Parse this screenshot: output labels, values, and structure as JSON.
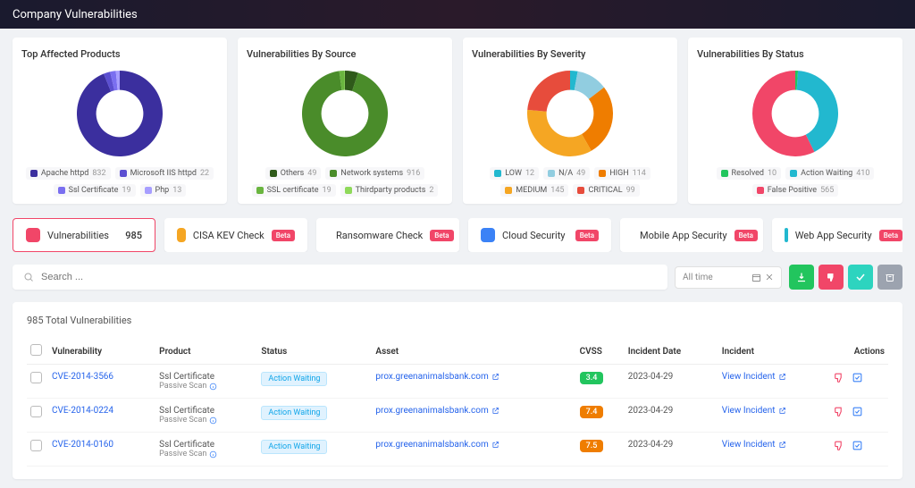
{
  "page_title": "Company Vulnerabilities",
  "colors": {
    "accent_red": "#f14668",
    "green_btn": "#22c55e",
    "red_btn": "#f14668",
    "teal_btn": "#14b8a6",
    "gray_btn": "#9ca3af"
  },
  "charts": [
    {
      "title": "Top Affected Products",
      "type": "donut",
      "inner_radius": 0.55,
      "outer_radius": 48,
      "background": "#ffffff",
      "segments": [
        {
          "label": "Apache httpd",
          "value": 832,
          "color": "#3b2f9e"
        },
        {
          "label": "Microsoft IIS httpd",
          "value": 22,
          "color": "#5b4fd1"
        },
        {
          "label": "Ssl Certificate",
          "value": 19,
          "color": "#7a6ff0"
        },
        {
          "label": "Php",
          "value": 13,
          "color": "#a79eff"
        }
      ]
    },
    {
      "title": "Vulnerabilities By Source",
      "type": "donut",
      "inner_radius": 0.55,
      "outer_radius": 48,
      "background": "#ffffff",
      "segments": [
        {
          "label": "Others",
          "value": 49,
          "color": "#2f5a1a"
        },
        {
          "label": "Network systems",
          "value": 916,
          "color": "#4a8c2a"
        },
        {
          "label": "SSL certificate",
          "value": 19,
          "color": "#6ab53f"
        },
        {
          "label": "Thirdparty products",
          "value": 2,
          "color": "#8fd95a"
        }
      ]
    },
    {
      "title": "Vulnerabilities By Severity",
      "type": "donut",
      "inner_radius": 0.55,
      "outer_radius": 48,
      "background": "#ffffff",
      "segments": [
        {
          "label": "LOW",
          "value": 12,
          "color": "#22b8cf"
        },
        {
          "label": "N/A",
          "value": 49,
          "color": "#91cde0"
        },
        {
          "label": "HIGH",
          "value": 114,
          "color": "#ef7d00"
        },
        {
          "label": "MEDIUM",
          "value": 145,
          "color": "#f5a623"
        },
        {
          "label": "CRITICAL",
          "value": 99,
          "color": "#e74c3c"
        }
      ]
    },
    {
      "title": "Vulnerabilities By Status",
      "type": "donut",
      "inner_radius": 0.55,
      "outer_radius": 48,
      "background": "#ffffff",
      "segments": [
        {
          "label": "Resolved",
          "value": 10,
          "color": "#22c55e"
        },
        {
          "label": "Action Waiting",
          "value": 410,
          "color": "#22b8cf"
        },
        {
          "label": "False Positive",
          "value": 565,
          "color": "#f14668"
        }
      ],
      "legend_truncated_last": "False Positive"
    }
  ],
  "tabs": [
    {
      "label": "Vulnerabilities",
      "count": 985,
      "color": "#f14668",
      "beta": false,
      "active": true
    },
    {
      "label": "CISA KEV Check",
      "color": "#f5a623",
      "beta": true,
      "active": false
    },
    {
      "label": "Ransomware Check",
      "color": "#22c55e",
      "beta": true,
      "active": false
    },
    {
      "label": "Cloud Security",
      "color": "#3b82f6",
      "beta": true,
      "active": false
    },
    {
      "label": "Mobile App Security",
      "color": "#6b7280",
      "beta": true,
      "active": false
    },
    {
      "label": "Web App Security",
      "color": "#22b8cf",
      "beta": true,
      "active": false
    }
  ],
  "beta_text": "Beta",
  "search": {
    "placeholder": "Search ..."
  },
  "date_filter": {
    "label": "All time"
  },
  "action_buttons": [
    {
      "name": "download",
      "color": "#22c55e",
      "icon": "download"
    },
    {
      "name": "thumbs-down",
      "color": "#f14668",
      "icon": "thumbs-down"
    },
    {
      "name": "check",
      "color": "#2dd4bf",
      "icon": "check"
    },
    {
      "name": "archive",
      "color": "#9ca3af",
      "icon": "archive"
    }
  ],
  "table": {
    "total_text": "985 Total Vulnerabilities",
    "columns": [
      "",
      "Vulnerability",
      "Product",
      "Status",
      "Asset",
      "CVSS",
      "Incident Date",
      "Incident",
      "Actions"
    ],
    "status_label": "Action Waiting",
    "product_sub_label": "Passive Scan",
    "incident_link_label": "View Incident",
    "rows": [
      {
        "cve": "CVE-2014-3566",
        "product": "Ssl Certificate",
        "asset": "prox.greenanimalsbank.com",
        "cvss": "3.4",
        "cvss_color": "#22c55e",
        "date": "2023-04-29"
      },
      {
        "cve": "CVE-2014-0224",
        "product": "Ssl Certificate",
        "asset": "prox.greenanimalsbank.com",
        "cvss": "7.4",
        "cvss_color": "#ef7d00",
        "date": "2023-04-29"
      },
      {
        "cve": "CVE-2014-0160",
        "product": "Ssl Certificate",
        "asset": "prox.greenanimalsbank.com",
        "cvss": "7.5",
        "cvss_color": "#ef7d00",
        "date": "2023-04-29"
      }
    ]
  }
}
